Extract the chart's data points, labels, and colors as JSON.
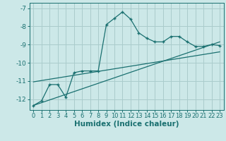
{
  "title": "",
  "xlabel": "Humidex (Indice chaleur)",
  "bg_color": "#cce8e8",
  "grid_color": "#aacccc",
  "line_color": "#1a7070",
  "xlim": [
    -0.5,
    23.5
  ],
  "ylim": [
    -12.6,
    -6.7
  ],
  "xticks": [
    0,
    1,
    2,
    3,
    4,
    5,
    6,
    7,
    8,
    9,
    10,
    11,
    12,
    13,
    14,
    15,
    16,
    17,
    18,
    19,
    20,
    21,
    22,
    23
  ],
  "yticks": [
    -12,
    -11,
    -10,
    -9,
    -8,
    -7
  ],
  "main_line_x": [
    0,
    1,
    2,
    3,
    4,
    5,
    6,
    7,
    8,
    9,
    10,
    11,
    12,
    13,
    14,
    15,
    16,
    17,
    18,
    19,
    20,
    21,
    22,
    23
  ],
  "main_line_y": [
    -12.35,
    -12.1,
    -11.2,
    -11.2,
    -11.9,
    -10.55,
    -10.45,
    -10.45,
    -10.45,
    -7.9,
    -7.55,
    -7.2,
    -7.6,
    -8.35,
    -8.65,
    -8.85,
    -8.85,
    -8.55,
    -8.55,
    -8.85,
    -9.1,
    -9.1,
    -9.0,
    -9.05
  ],
  "reg_line1_x": [
    0,
    23
  ],
  "reg_line1_y": [
    -12.35,
    -8.85
  ],
  "reg_line2_x": [
    0,
    23
  ],
  "reg_line2_y": [
    -11.05,
    -9.4
  ],
  "marker_size": 3.0,
  "tick_fontsize": 6.0,
  "xlabel_fontsize": 7.5
}
